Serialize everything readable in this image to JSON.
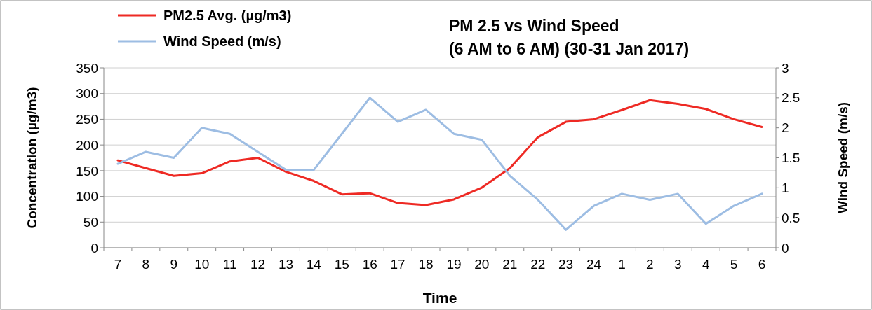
{
  "chart_data": {
    "type": "line",
    "title": "PM 2.5 vs Wind Speed\n(6 AM to 6 AM) (30-31 Jan 2017)",
    "xlabel": "Time",
    "ylabel": "Concentration (µg/m3)",
    "y2label": "Wind Speed (m/s)",
    "categories": [
      "7",
      "8",
      "9",
      "10",
      "11",
      "12",
      "13",
      "14",
      "15",
      "16",
      "17",
      "18",
      "19",
      "20",
      "21",
      "22",
      "23",
      "24",
      "1",
      "2",
      "3",
      "4",
      "5",
      "6"
    ],
    "series": [
      {
        "name": "PM2.5 Avg. (µg/m3)",
        "color": "#ee2a24",
        "values": [
          170,
          155,
          140,
          145,
          168,
          175,
          148,
          130,
          104,
          106,
          87,
          83,
          94,
          117,
          155,
          215,
          245,
          250,
          268,
          287,
          280,
          270,
          250,
          235
        ]
      },
      {
        "name": "Wind Speed (m/s)",
        "color": "#9dbde3",
        "axis": "y2",
        "values": [
          1.4,
          1.6,
          1.5,
          2.0,
          1.9,
          1.6,
          1.3,
          1.3,
          1.9,
          2.5,
          2.1,
          2.3,
          1.9,
          1.8,
          1.2,
          0.8,
          0.3,
          0.7,
          0.9,
          0.8,
          0.9,
          0.4,
          0.7,
          0.9
        ]
      }
    ],
    "ylim": [
      0,
      350
    ],
    "yticks": [
      0,
      50,
      100,
      150,
      200,
      250,
      300,
      350
    ],
    "y2lim": [
      0,
      3
    ],
    "y2ticks": [
      0,
      0.5,
      1,
      1.5,
      2,
      2.5,
      3
    ],
    "grid": "y",
    "legend": "top left",
    "marker": "none",
    "line_style": "solid"
  }
}
